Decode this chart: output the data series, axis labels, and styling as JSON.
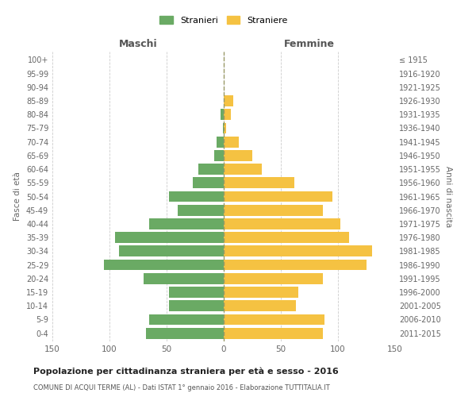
{
  "age_groups": [
    "0-4",
    "5-9",
    "10-14",
    "15-19",
    "20-24",
    "25-29",
    "30-34",
    "35-39",
    "40-44",
    "45-49",
    "50-54",
    "55-59",
    "60-64",
    "65-69",
    "70-74",
    "75-79",
    "80-84",
    "85-89",
    "90-94",
    "95-99",
    "100+"
  ],
  "birth_years": [
    "2011-2015",
    "2006-2010",
    "2001-2005",
    "1996-2000",
    "1991-1995",
    "1986-1990",
    "1981-1985",
    "1976-1980",
    "1971-1975",
    "1966-1970",
    "1961-1965",
    "1956-1960",
    "1951-1955",
    "1946-1950",
    "1941-1945",
    "1936-1940",
    "1931-1935",
    "1926-1930",
    "1921-1925",
    "1916-1920",
    "≤ 1915"
  ],
  "maschi": [
    68,
    65,
    48,
    48,
    70,
    105,
    92,
    95,
    65,
    40,
    48,
    27,
    22,
    8,
    6,
    1,
    3,
    0,
    0,
    0,
    0
  ],
  "femmine": [
    87,
    88,
    63,
    65,
    87,
    125,
    130,
    110,
    102,
    87,
    95,
    62,
    33,
    25,
    13,
    2,
    6,
    8,
    0,
    0,
    0
  ],
  "male_color": "#6aaa64",
  "female_color": "#f5c242",
  "background_color": "#ffffff",
  "grid_color": "#cccccc",
  "title": "Popolazione per cittadinanza straniera per età e sesso - 2016",
  "subtitle": "COMUNE DI ACQUI TERME (AL) - Dati ISTAT 1° gennaio 2016 - Elaborazione TUTTITALIA.IT",
  "ylabel_left": "Fasce di età",
  "ylabel_right": "Anni di nascita",
  "xlabel_left": "Maschi",
  "xlabel_right": "Femmine",
  "xlim": 150,
  "legend_maschi": "Stranieri",
  "legend_femmine": "Straniere"
}
